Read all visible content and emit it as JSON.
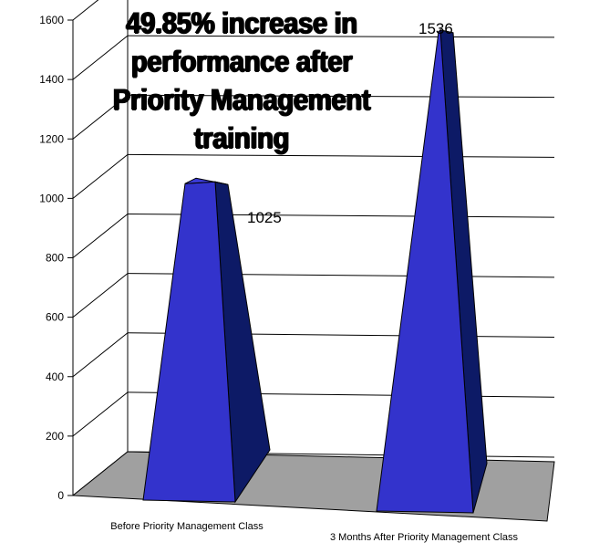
{
  "chart_data": {
    "type": "3d-cone-column",
    "title": "49.85% increase in performance after Priority Management training",
    "title_lines": [
      "49.85% increase in",
      "performance after",
      "Priority Management",
      "training"
    ],
    "categories": [
      "Before Priority Management Class",
      "3 Months After Priority Management Class"
    ],
    "values": [
      1025,
      1536
    ],
    "data_labels": [
      "1025",
      "1536"
    ],
    "y_ticks": [
      "0",
      "200",
      "400",
      "600",
      "800",
      "1000",
      "1200",
      "1400",
      "1600"
    ],
    "ylim": [
      0,
      1600
    ],
    "grid": true,
    "colors": {
      "front": "#3333cc",
      "side": "#0d1a66",
      "floor": "#a0a0a0"
    }
  }
}
